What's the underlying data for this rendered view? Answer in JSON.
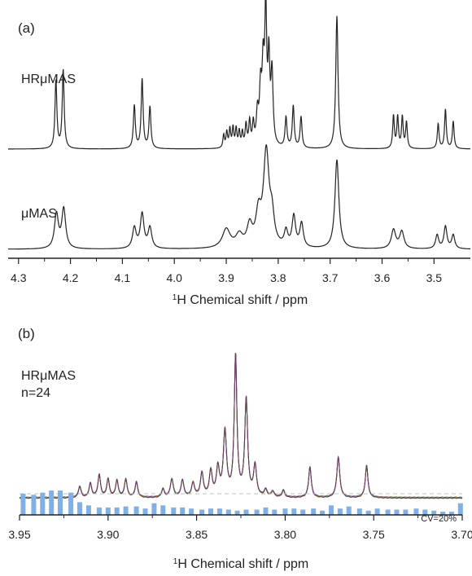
{
  "chart_data": [
    {
      "type": "line",
      "panel_label": "(a)",
      "xlabel_superscript": "1",
      "xlabel": "H Chemical shift / ppm",
      "x_reversed": true,
      "xlim": [
        4.32,
        3.43
      ],
      "ticks": [
        4.3,
        4.2,
        4.1,
        4.0,
        3.9,
        3.8,
        3.7,
        3.6,
        3.5
      ],
      "tick_labels": [
        "4.3",
        "4.2",
        "4.1",
        "4.0",
        "3.9",
        "3.8",
        "3.7",
        "3.6",
        "3.5"
      ],
      "series": [
        {
          "name": "HRμMAS",
          "color": "#222222",
          "peaks": [
            [
              4.228,
              0.52,
              0.0022
            ],
            [
              4.214,
              0.6,
              0.0022
            ],
            [
              4.077,
              0.33,
              0.0022
            ],
            [
              4.062,
              0.53,
              0.0022
            ],
            [
              4.047,
              0.32,
              0.0022
            ],
            [
              3.905,
              0.1,
              0.0018
            ],
            [
              3.899,
              0.12,
              0.0018
            ],
            [
              3.893,
              0.14,
              0.0018
            ],
            [
              3.887,
              0.15,
              0.0018
            ],
            [
              3.881,
              0.14,
              0.0018
            ],
            [
              3.875,
              0.12,
              0.0018
            ],
            [
              3.869,
              0.11,
              0.0018
            ],
            [
              3.862,
              0.17,
              0.002
            ],
            [
              3.855,
              0.19,
              0.002
            ],
            [
              3.848,
              0.17,
              0.002
            ],
            [
              3.84,
              0.24,
              0.0025
            ],
            [
              3.834,
              0.4,
              0.0025
            ],
            [
              3.829,
              0.55,
              0.0025
            ],
            [
              3.824,
              1.0,
              0.0022
            ],
            [
              3.818,
              0.62,
              0.0022
            ],
            [
              3.812,
              0.55,
              0.0025
            ],
            [
              3.785,
              0.23,
              0.0022
            ],
            [
              3.771,
              0.32,
              0.0022
            ],
            [
              3.756,
              0.24,
              0.0022
            ],
            [
              3.687,
              1.02,
              0.0026
            ],
            [
              3.578,
              0.25,
              0.0019
            ],
            [
              3.57,
              0.24,
              0.0019
            ],
            [
              3.561,
              0.24,
              0.0019
            ],
            [
              3.553,
              0.2,
              0.0019
            ],
            [
              3.492,
              0.19,
              0.002
            ],
            [
              3.478,
              0.3,
              0.002
            ],
            [
              3.463,
              0.21,
              0.002
            ]
          ]
        },
        {
          "name": "μMAS",
          "color": "#222222",
          "peaks": [
            [
              4.227,
              0.2,
              0.0045
            ],
            [
              4.213,
              0.23,
              0.0045
            ],
            [
              4.077,
              0.12,
              0.0042
            ],
            [
              4.062,
              0.2,
              0.0042
            ],
            [
              4.047,
              0.12,
              0.0042
            ],
            [
              3.9,
              0.11,
              0.009
            ],
            [
              3.875,
              0.07,
              0.008
            ],
            [
              3.855,
              0.12,
              0.006
            ],
            [
              3.838,
              0.18,
              0.006
            ],
            [
              3.823,
              0.55,
              0.0065
            ],
            [
              3.812,
              0.15,
              0.005
            ],
            [
              3.785,
              0.09,
              0.004
            ],
            [
              3.77,
              0.18,
              0.004
            ],
            [
              3.755,
              0.14,
              0.004
            ],
            [
              3.687,
              0.52,
              0.0045
            ],
            [
              3.578,
              0.11,
              0.005
            ],
            [
              3.562,
              0.1,
              0.005
            ],
            [
              3.494,
              0.08,
              0.0035
            ],
            [
              3.478,
              0.13,
              0.0035
            ],
            [
              3.463,
              0.08,
              0.0035
            ]
          ]
        }
      ]
    },
    {
      "type": "line",
      "panel_label": "(b)",
      "series_label": "HRμMAS",
      "count_label": "n=24",
      "cv_label": "CV=20%",
      "xlabel_superscript": "1",
      "xlabel": "H Chemical shift / ppm",
      "x_reversed": true,
      "xlim": [
        3.95,
        3.7
      ],
      "ticks": [
        3.95,
        3.9,
        3.85,
        3.8,
        3.75,
        3.7
      ],
      "tick_labels": [
        "3.95",
        "3.90",
        "3.85",
        "3.80",
        "3.75",
        "3.70"
      ],
      "overlay_colors": [
        "#c0392b",
        "#2e86c1",
        "#7d3c98",
        "#28b463",
        "#d68910",
        "#5b2c6f"
      ],
      "peaks": [
        [
          3.916,
          0.08,
          0.0009
        ],
        [
          3.91,
          0.1,
          0.0009
        ],
        [
          3.905,
          0.16,
          0.0009
        ],
        [
          3.9,
          0.13,
          0.0009
        ],
        [
          3.895,
          0.12,
          0.0009
        ],
        [
          3.89,
          0.13,
          0.0009
        ],
        [
          3.884,
          0.11,
          0.0009
        ],
        [
          3.869,
          0.06,
          0.0009
        ],
        [
          3.864,
          0.13,
          0.001
        ],
        [
          3.858,
          0.12,
          0.001
        ],
        [
          3.852,
          0.1,
          0.001
        ],
        [
          3.847,
          0.17,
          0.001
        ],
        [
          3.842,
          0.18,
          0.001
        ],
        [
          3.838,
          0.2,
          0.001
        ],
        [
          3.834,
          0.46,
          0.0011
        ],
        [
          3.828,
          1.0,
          0.0009
        ],
        [
          3.822,
          0.69,
          0.001
        ],
        [
          3.817,
          0.22,
          0.001
        ],
        [
          3.811,
          0.05,
          0.001
        ],
        [
          3.807,
          0.04,
          0.001
        ],
        [
          3.801,
          0.05,
          0.0009
        ],
        [
          3.786,
          0.22,
          0.0009
        ],
        [
          3.77,
          0.29,
          0.001
        ],
        [
          3.754,
          0.23,
          0.0009
        ]
      ],
      "cv_reference": 20,
      "cv_bars": [
        [
          3.948,
          20
        ],
        [
          3.942,
          19
        ],
        [
          3.937,
          21
        ],
        [
          3.932,
          23
        ],
        [
          3.927,
          23
        ],
        [
          3.921,
          21
        ],
        [
          3.916,
          12
        ],
        [
          3.911,
          9
        ],
        [
          3.905,
          7
        ],
        [
          3.9,
          7
        ],
        [
          3.895,
          7
        ],
        [
          3.89,
          8
        ],
        [
          3.884,
          8
        ],
        [
          3.879,
          6
        ],
        [
          3.874,
          11
        ],
        [
          3.869,
          9
        ],
        [
          3.863,
          7
        ],
        [
          3.858,
          7
        ],
        [
          3.853,
          6
        ],
        [
          3.847,
          5
        ],
        [
          3.842,
          6
        ],
        [
          3.837,
          6
        ],
        [
          3.832,
          5
        ],
        [
          3.827,
          4
        ],
        [
          3.822,
          5
        ],
        [
          3.816,
          5
        ],
        [
          3.811,
          7
        ],
        [
          3.806,
          5
        ],
        [
          3.8,
          6
        ],
        [
          3.795,
          6
        ],
        [
          3.79,
          5
        ],
        [
          3.784,
          6
        ],
        [
          3.779,
          4
        ],
        [
          3.774,
          9
        ],
        [
          3.769,
          6
        ],
        [
          3.764,
          8
        ],
        [
          3.758,
          6
        ],
        [
          3.753,
          4
        ],
        [
          3.748,
          6
        ],
        [
          3.742,
          5
        ],
        [
          3.737,
          5
        ],
        [
          3.732,
          5
        ],
        [
          3.726,
          6
        ],
        [
          3.721,
          5
        ],
        [
          3.716,
          4
        ],
        [
          3.711,
          3
        ],
        [
          3.706,
          3
        ],
        [
          3.701,
          11
        ]
      ]
    }
  ]
}
